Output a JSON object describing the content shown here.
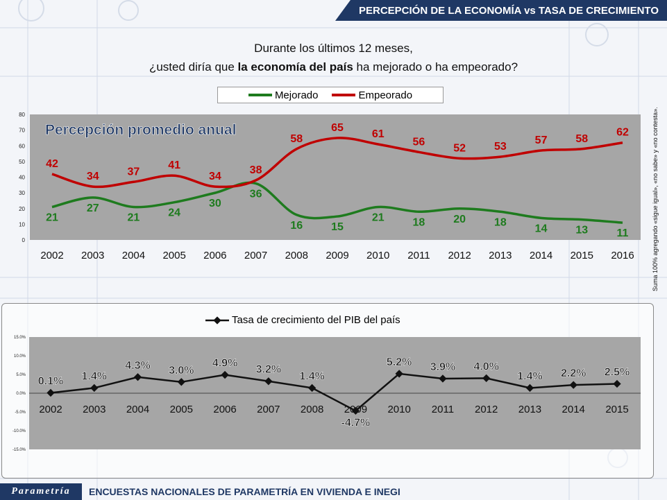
{
  "header": {
    "title": "PERCEPCIÓN DE LA ECONOMÍA vs TASA DE CRECIMIENTO"
  },
  "question": {
    "line1": "Durante los últimos 12 meses,",
    "line2_pre": "¿usted diría que ",
    "line2_bold": "la economía del país",
    "line2_post": " ha mejorado o ha empeorado?"
  },
  "side_note": "Suma 100%  agregando «sigue igual», «no sabe» y «no contesta».",
  "footer": {
    "logo": "Parametría",
    "text": "ENCUESTAS NACIONALES DE PARAMETRÍA EN VIVIENDA E INEGI"
  },
  "colors": {
    "green": "#1e7b1e",
    "red": "#c00000",
    "black": "#111111",
    "navy": "#1f3864",
    "plot_bg": "#a6a6a6"
  },
  "chart_data": [
    {
      "type": "line",
      "title": "Percepción promedio anual",
      "categories": [
        "2002",
        "2003",
        "2004",
        "2005",
        "2006",
        "2007",
        "2008",
        "2009",
        "2010",
        "2011",
        "2012",
        "2013",
        "2014",
        "2015",
        "2016"
      ],
      "series": [
        {
          "name": "Mejorado",
          "color": "#1e7b1e",
          "values": [
            21,
            27,
            21,
            24,
            30,
            36,
            16,
            15,
            21,
            18,
            20,
            18,
            14,
            13,
            11
          ]
        },
        {
          "name": "Empeorado",
          "color": "#c00000",
          "values": [
            42,
            34,
            37,
            41,
            34,
            38,
            58,
            65,
            61,
            56,
            52,
            53,
            57,
            58,
            62
          ]
        }
      ],
      "ylim": [
        0,
        80
      ],
      "yticks": [
        "0",
        "10",
        "20",
        "30",
        "40",
        "50",
        "60",
        "70",
        "80"
      ],
      "legend": "top"
    },
    {
      "type": "line",
      "title": "",
      "categories": [
        "2002",
        "2003",
        "2004",
        "2005",
        "2006",
        "2007",
        "2008",
        "2009",
        "2010",
        "2011",
        "2012",
        "2013",
        "2014",
        "2015"
      ],
      "series": [
        {
          "name": "Tasa de crecimiento del PIB del país",
          "color": "#111111",
          "values": [
            0.1,
            1.4,
            4.3,
            3.0,
            4.9,
            3.2,
            1.4,
            -4.7,
            5.2,
            3.9,
            4.0,
            1.4,
            2.2,
            2.5
          ],
          "labels": [
            "0.1%",
            "1.4%",
            "4.3%",
            "3.0%",
            "4.9%",
            "3.2%",
            "1.4%",
            "-4.7%",
            "5.2%",
            "3.9%",
            "4.0%",
            "1.4%",
            "2.2%",
            "2.5%"
          ]
        }
      ],
      "ylim": [
        -15,
        15
      ],
      "yticks": [
        "-15.0%",
        "-10.0%",
        "-5.0%",
        "0.0%",
        "5.0%",
        "10.0%",
        "15.0%"
      ],
      "legend": "top"
    }
  ]
}
